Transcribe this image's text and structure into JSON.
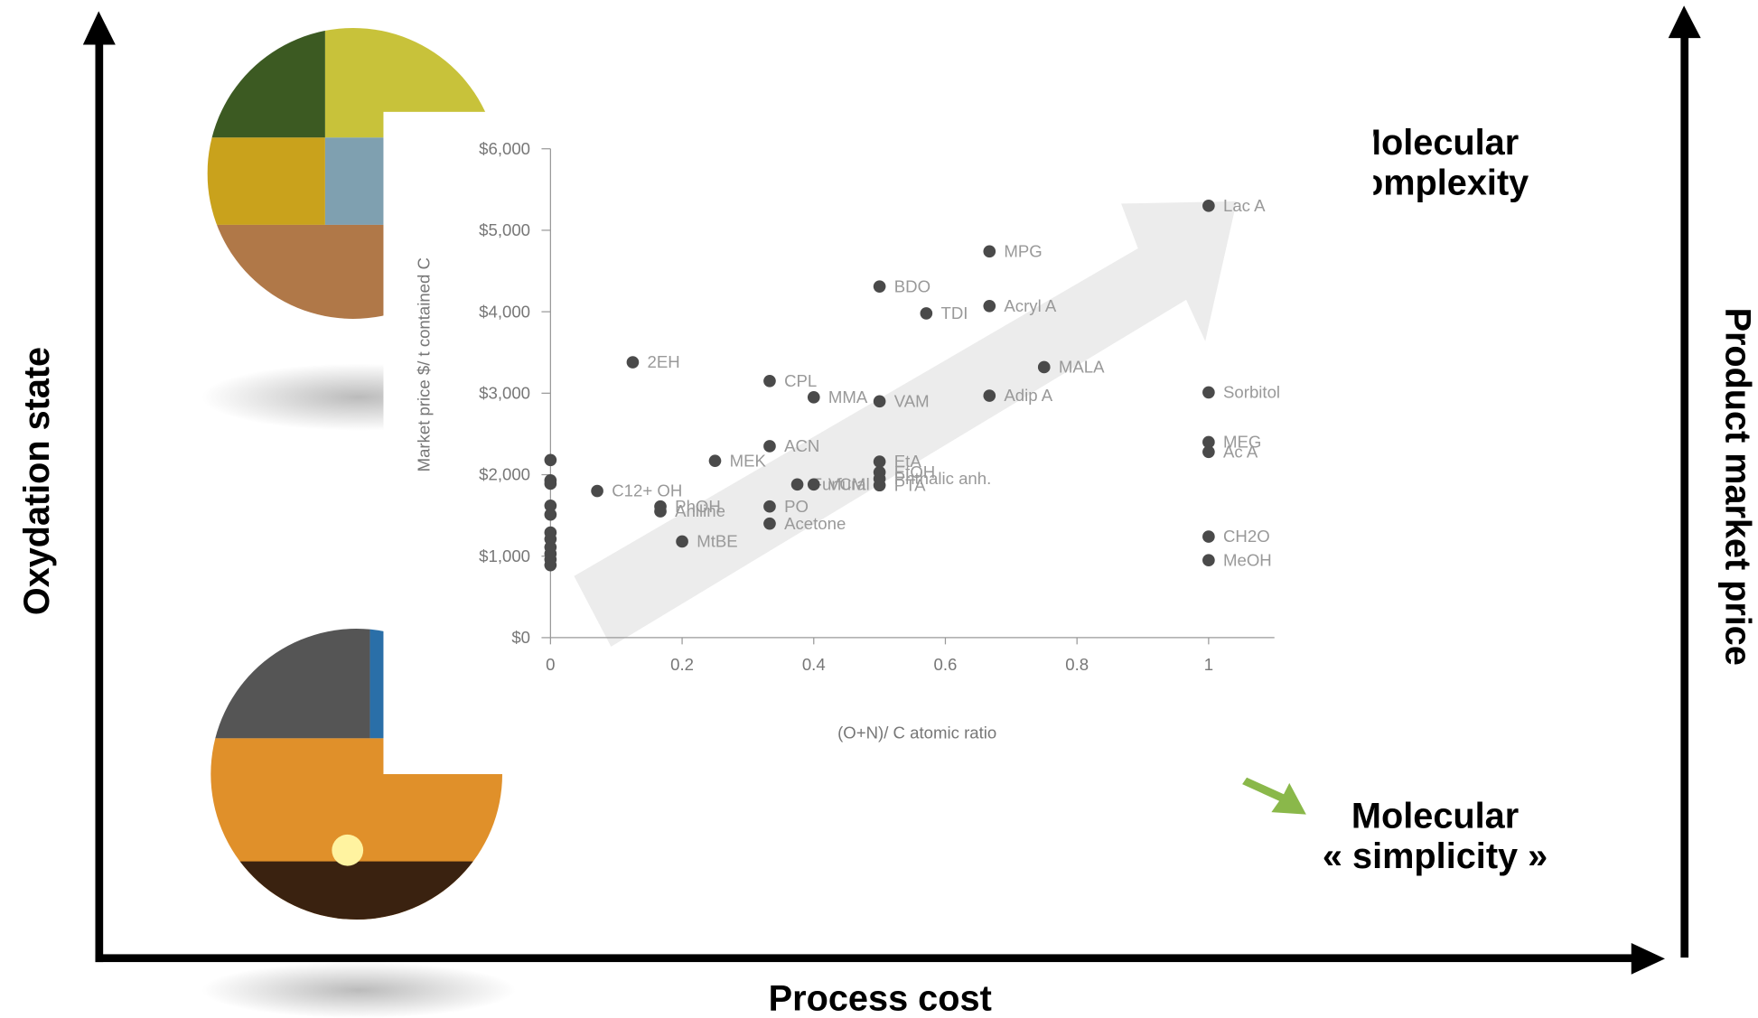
{
  "diagram": {
    "left_axis": "Oxydation state",
    "right_axis": "Product market price",
    "bottom_axis": "Process cost",
    "top_right": [
      "Molecular",
      "complexity"
    ],
    "bottom_right": [
      "Molecular",
      "« simplicity »"
    ]
  },
  "chart_data": {
    "type": "scatter",
    "x_label": "(O+N)/ C atomic ratio",
    "y_label": "Market price $/ t contained C",
    "xlim": [
      0,
      1.1
    ],
    "xticks": [
      0,
      0.2,
      0.4,
      0.6,
      0.8,
      1
    ],
    "ylim": [
      0,
      6000
    ],
    "yticks": [
      {
        "value": 0,
        "label": "$0"
      },
      {
        "value": 1000,
        "label": "$1,000"
      },
      {
        "value": 2000,
        "label": "$2,000"
      },
      {
        "value": 3000,
        "label": "$3,000"
      },
      {
        "value": 4000,
        "label": "$4,000"
      },
      {
        "value": 5000,
        "label": "$5,000"
      },
      {
        "value": 6000,
        "label": "$6,000"
      }
    ],
    "color": "#4a4a4a",
    "labels": [
      "Lac A",
      "MPG",
      "BDO",
      "TDI",
      "Acryl A",
      "2EH",
      "MALA",
      "Sorbitol",
      "CPL",
      "MMA",
      "VAM",
      "Adip A",
      "MEG",
      "Ac A",
      "ACN",
      "MEK",
      "EtA",
      "EtOH",
      "PTA",
      "Phthalic anh.",
      "Furfural",
      "VCM",
      "C12+ OH",
      "PhOH",
      "Aniline",
      "PO",
      "Acetone",
      "MtBE",
      "CH2O",
      "MeOH",
      null,
      null,
      null,
      null,
      null,
      null,
      null,
      null,
      null,
      null,
      null
    ],
    "x": [
      1,
      0.667,
      0.5,
      0.571,
      0.667,
      0.125,
      0.75,
      1,
      0.333,
      0.4,
      0.5,
      0.667,
      1,
      1,
      0.333,
      0.25,
      0.5,
      0.5,
      0.5,
      0.5,
      0.375,
      0.4,
      0.071,
      0.167,
      0.167,
      0.333,
      0.333,
      0.2,
      1,
      1,
      0,
      0,
      0,
      0,
      0,
      0,
      0,
      0,
      0,
      0,
      0
    ],
    "y": [
      5300,
      4740,
      4310,
      3980,
      4070,
      3380,
      3320,
      3010,
      3150,
      2950,
      2900,
      2970,
      2400,
      2280,
      2350,
      2170,
      2160,
      2030,
      1870,
      1950,
      1880,
      1880,
      1800,
      1610,
      1550,
      1610,
      1400,
      1180,
      1240,
      950,
      2180,
      1930,
      1890,
      1620,
      1510,
      1290,
      1210,
      1110,
      1030,
      960,
      890
    ]
  }
}
